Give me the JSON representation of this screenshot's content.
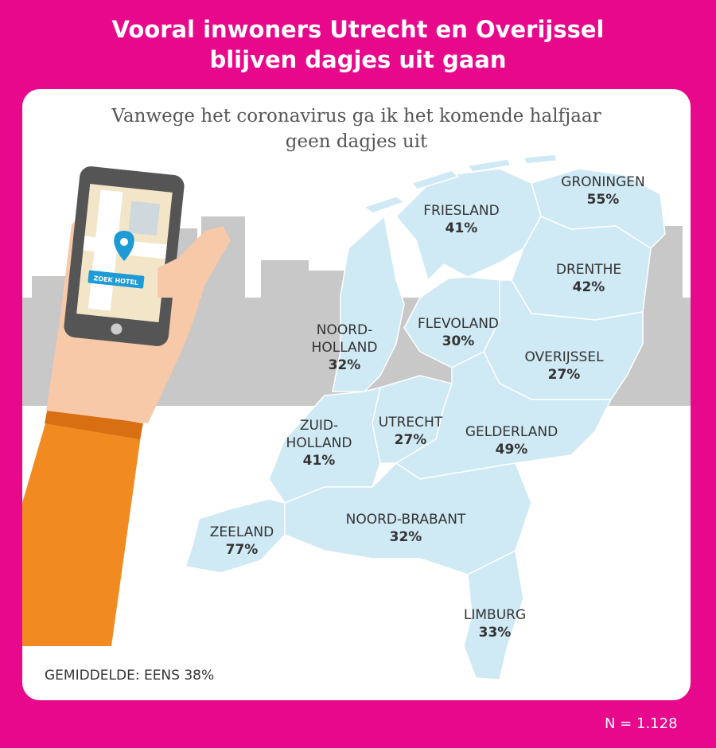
{
  "title": {
    "line1": "Vooral inwoners Utrecht en Overijssel",
    "line2": "blijven dagjes uit gaan"
  },
  "subtitle": {
    "line1": "Vanwege het coronavirus ga ik het komende halfjaar",
    "line2": "geen dagjes uit"
  },
  "phone": {
    "button_label": "ZOEK HOTEL"
  },
  "regions": [
    {
      "name": "GRONINGEN",
      "value": "55%"
    },
    {
      "name": "FRIESLAND",
      "value": "41%"
    },
    {
      "name": "DRENTHE",
      "value": "42%"
    },
    {
      "name": "NOORD-",
      "name2": "HOLLAND",
      "value": "32%"
    },
    {
      "name": "FLEVOLAND",
      "value": "30%"
    },
    {
      "name": "OVERIJSSEL",
      "value": "27%"
    },
    {
      "name": "ZUID-",
      "name2": "HOLLAND",
      "value": "41%"
    },
    {
      "name": "UTRECHT",
      "value": "27%"
    },
    {
      "name": "GELDERLAND",
      "value": "49%"
    },
    {
      "name": "ZEELAND",
      "value": "77%"
    },
    {
      "name": "NOORD-BRABANT",
      "value": "32%"
    },
    {
      "name": "LIMBURG",
      "value": "33%"
    }
  ],
  "average": "GEMIDDELDE: EENS 38%",
  "sample_size": "N = 1.128",
  "colors": {
    "background": "#e8088c",
    "map_fill": "#cfe9f5",
    "skyline": "#c8c8c8",
    "sleeve": "#f28a22",
    "skin": "#f7c9a8",
    "phone_body": "#555555",
    "pin": "#1e9ad6"
  }
}
